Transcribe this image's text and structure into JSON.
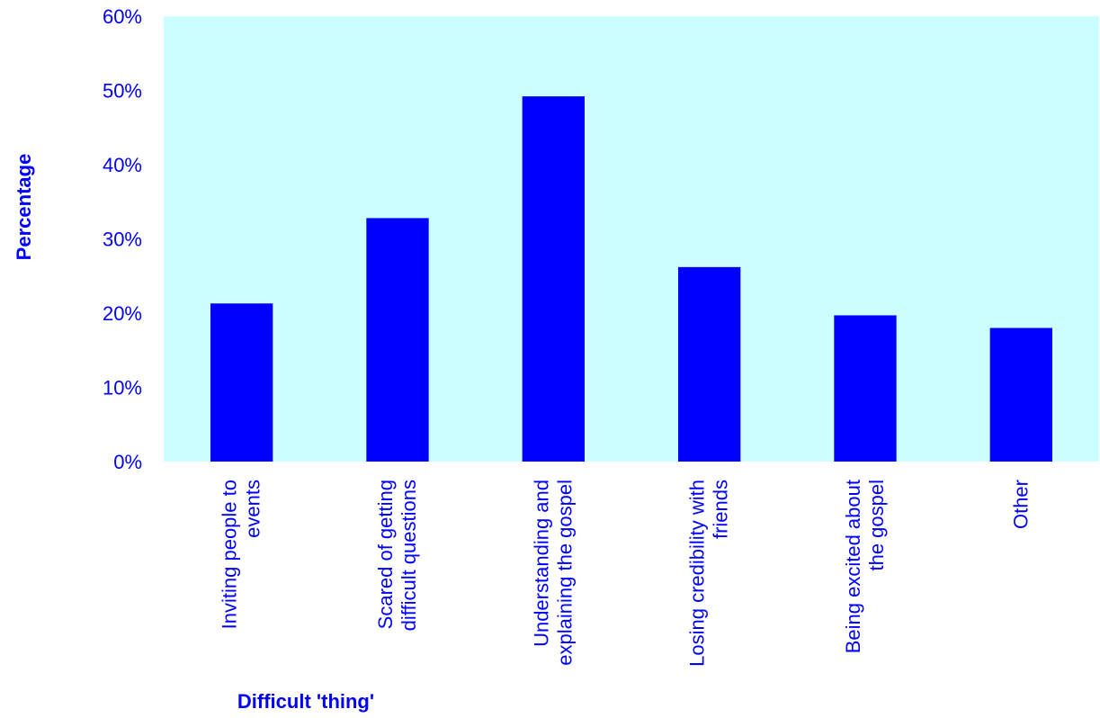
{
  "chart_data": {
    "type": "bar",
    "title": "",
    "xlabel": "Difficult 'thing'",
    "ylabel": "Percentage",
    "categories": [
      [
        "Inviting people to",
        "events"
      ],
      [
        "Scared of getting",
        "difficult questions"
      ],
      [
        "Understanding and",
        "explaining the gospel"
      ],
      [
        "Losing credibility with",
        "friends"
      ],
      [
        "Being excited about",
        "the gospel"
      ],
      [
        "Other"
      ]
    ],
    "values": [
      21.3,
      32.8,
      49.2,
      26.2,
      19.7,
      18.0
    ],
    "ylim": [
      0,
      60
    ],
    "yticks": [
      0,
      10,
      20,
      30,
      40,
      50,
      60
    ],
    "ytick_labels": [
      "0%",
      "10%",
      "20%",
      "30%",
      "40%",
      "50%",
      "60%"
    ],
    "grid": false,
    "legend": "none",
    "colors": {
      "bar": "#0000ff",
      "plot_background": "#ccffff",
      "text": "#0000ff"
    }
  }
}
